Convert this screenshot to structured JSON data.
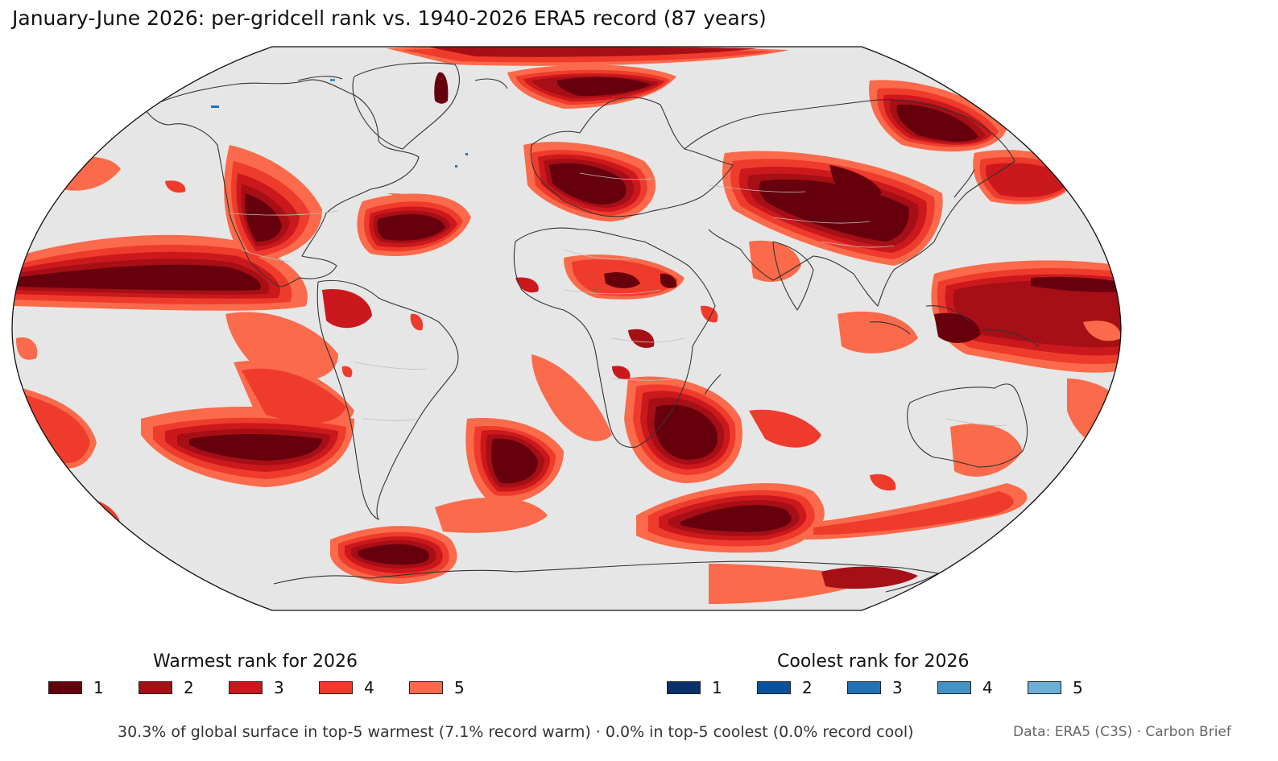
{
  "title": "January-June 2026: per-gridcell rank vs. 1940-2026 ERA5 record (87 years)",
  "colors": {
    "ocean_land_background": "#e6e6e6",
    "coastline": "#333333",
    "borders": "#bdbdbd",
    "warm": [
      "#67000d",
      "#a50f15",
      "#cb181d",
      "#ef3b2c",
      "#fb6a4a"
    ],
    "cool": [
      "#08306b",
      "#08519c",
      "#2171b5",
      "#4292c6",
      "#6baed6"
    ]
  },
  "map": {
    "projection": "Robinson"
  },
  "legends": {
    "warm": {
      "title": "Warmest rank for 2026",
      "items": [
        {
          "label": "1",
          "color": "#67000d"
        },
        {
          "label": "2",
          "color": "#a50f15"
        },
        {
          "label": "3",
          "color": "#cb181d"
        },
        {
          "label": "4",
          "color": "#ef3b2c"
        },
        {
          "label": "5",
          "color": "#fb6a4a"
        }
      ]
    },
    "cool": {
      "title": "Coolest rank for 2026",
      "items": [
        {
          "label": "1",
          "color": "#08306b"
        },
        {
          "label": "2",
          "color": "#08519c"
        },
        {
          "label": "3",
          "color": "#2171b5"
        },
        {
          "label": "4",
          "color": "#4292c6"
        },
        {
          "label": "5",
          "color": "#6baed6"
        }
      ]
    }
  },
  "footer": "30.3% of global surface in top-5 warmest (7.1% record warm) · 0.0% in top-5 coolest (0.0% record cool)",
  "credit": "Data: ERA5 (C3S) · Carbon Brief"
}
